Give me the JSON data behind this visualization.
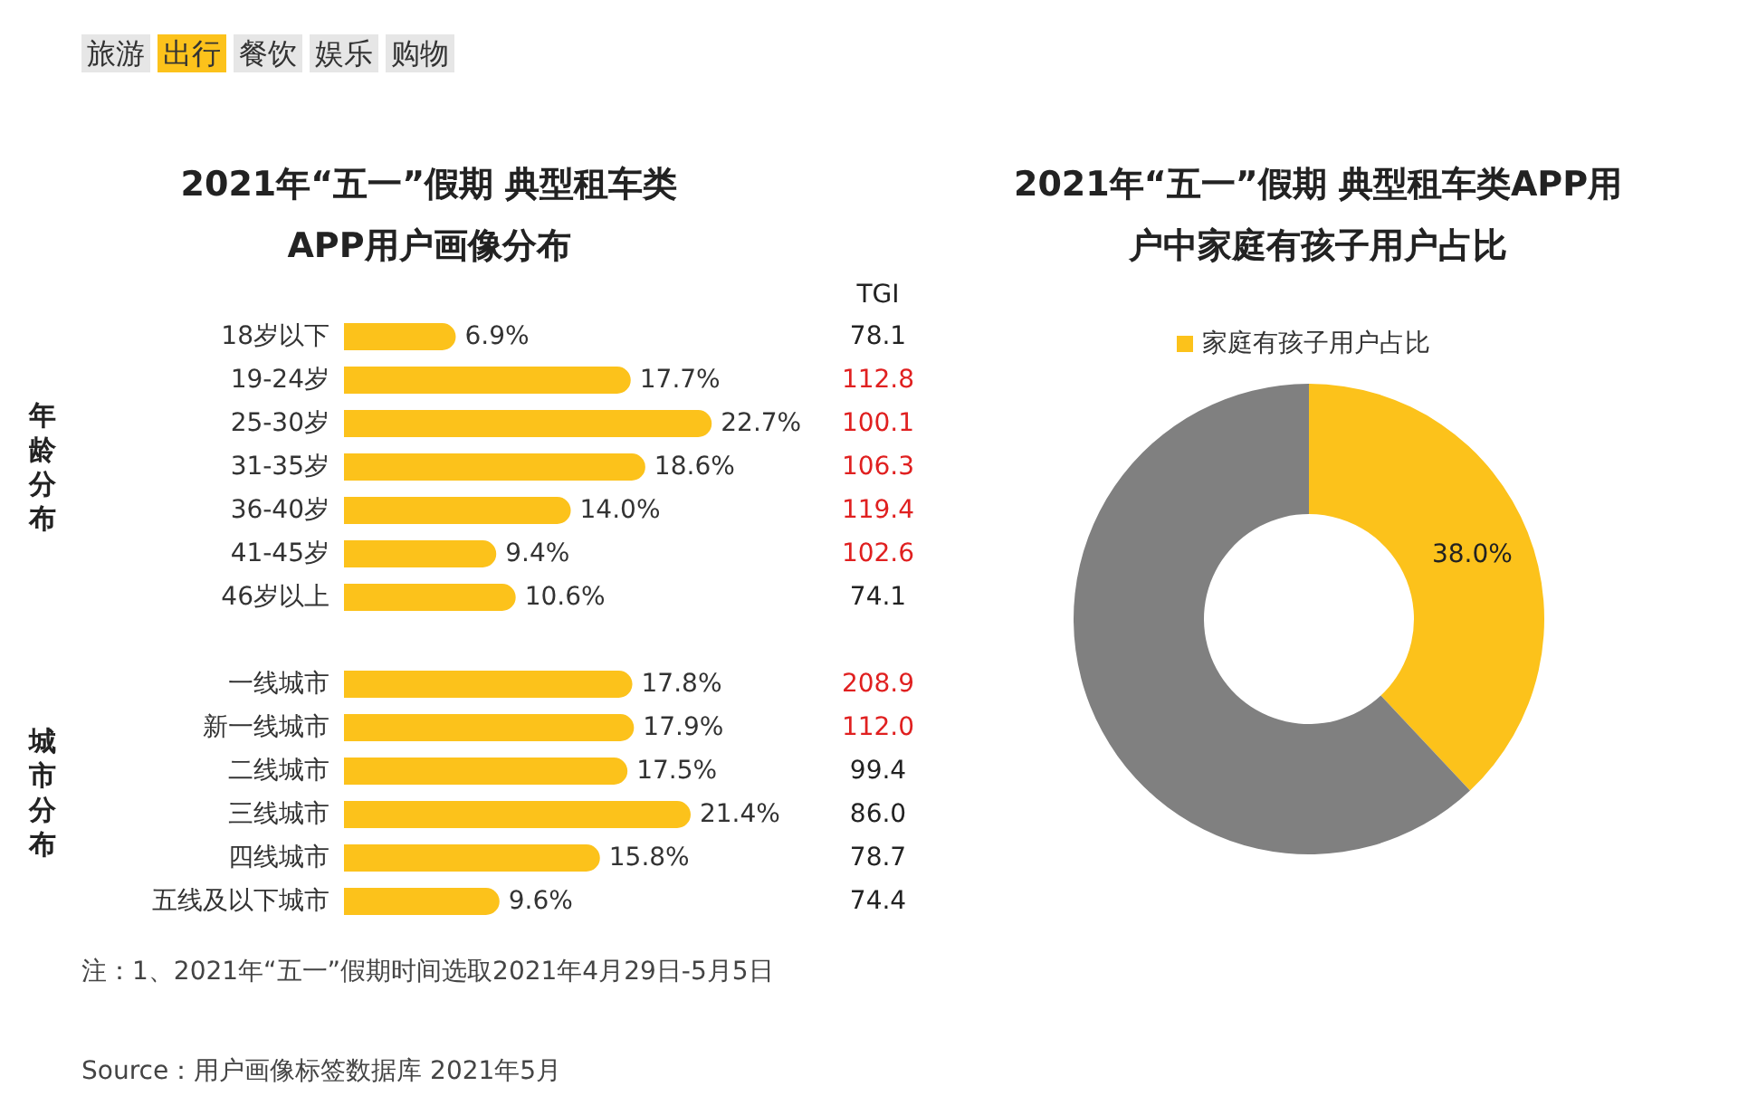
{
  "chart_data": [
    {
      "type": "bar",
      "orientation": "horizontal",
      "title": "2021年“五一”假期 典型租车类APP用户画像分布",
      "categories": [
        "18岁以下",
        "19-24岁",
        "25-30岁",
        "31-35岁",
        "36-40岁",
        "41-45岁",
        "46岁以上",
        null,
        "一线城市",
        "新一线城市",
        "二线城市",
        "三线城市",
        "四线城市",
        "五线及以下城市"
      ],
      "values": [
        6.9,
        17.7,
        22.7,
        18.6,
        14.0,
        9.4,
        10.6,
        null,
        17.8,
        17.9,
        17.5,
        21.4,
        15.8,
        9.6
      ],
      "value_labels": [
        "6.9%",
        "17.7%",
        "22.7%",
        "18.6%",
        "14.0%",
        "9.4%",
        "10.6%",
        null,
        "17.8%",
        "17.9%",
        "17.5%",
        "21.4%",
        "15.8%",
        "9.6%"
      ],
      "color": "#fcc21b",
      "annotations": [
        "旅游",
        "出行",
        "餐饮",
        "娱乐",
        "购物",
        "TGI",
        "年龄分布",
        "城市分布",
        "78.1",
        "112.8",
        "100.1",
        "106.3",
        "119.4",
        "102.6",
        "74.1",
        "208.9",
        "112.0",
        "99.4",
        "86.0",
        "78.7",
        "74.4",
        "注：1、2021年“五一”假期时间选取2021年4月29日-5月5日",
        "Source：用户画像标签数据库 2021年5月"
      ]
    },
    {
      "type": "donut",
      "title": "2021年“五一”假期 典型租车类APP用户中家庭有孩子用户占比",
      "categories": [
        "家庭有孩子用户占比",
        null
      ],
      "values": [
        38.0,
        62.0
      ],
      "colors": [
        "#fcc21b",
        "#808080"
      ],
      "value_labels": [
        "38.0%",
        null
      ],
      "legend": "top"
    }
  ]
}
